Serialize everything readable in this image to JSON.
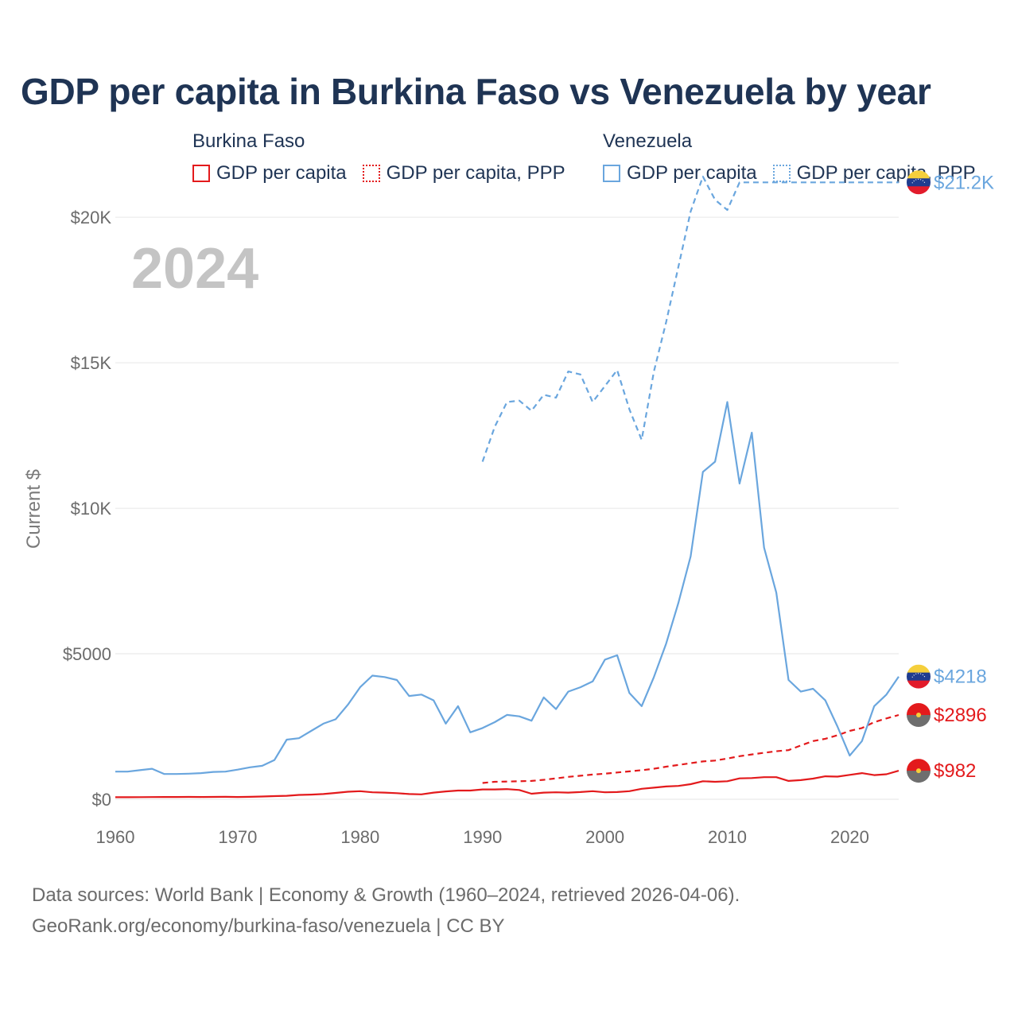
{
  "header": {
    "title": "GDP per capita in Burkina Faso vs Venezuela by year"
  },
  "legend": {
    "groups": [
      {
        "name": "Burkina Faso",
        "items": [
          "GDP per capita",
          "GDP per capita, PPP"
        ]
      },
      {
        "name": "Venezuela",
        "items": [
          "GDP per capita",
          "GDP per capita, PPP"
        ]
      }
    ]
  },
  "colors": {
    "burkina_faso": "#e31a1c",
    "venezuela": "#6aa6de",
    "title": "#1f3454",
    "grid": "#e6e6e6",
    "axis_text": "#6b6b6b",
    "year_watermark": "#c4c4c4"
  },
  "footer": {
    "line1": "Data sources: World Bank | Economy & Growth (1960–2024, retrieved 2026-04-06).",
    "line2": "GeoRank.org/economy/burkina-faso/venezuela | CC BY"
  },
  "chart_data": {
    "type": "line",
    "year_label": "2024",
    "ylabel": "Current $",
    "xlim": [
      1960,
      2024
    ],
    "ylim": [
      0,
      22000
    ],
    "x_ticks": [
      1960,
      1970,
      1980,
      1990,
      2000,
      2010,
      2020
    ],
    "y_ticks": [
      0,
      5000,
      10000,
      15000,
      20000
    ],
    "y_tick_labels": [
      "$0",
      "$5000",
      "$10K",
      "$15K",
      "$20K"
    ],
    "series": [
      {
        "name": "Burkina Faso — GDP per capita",
        "country": "Burkina Faso",
        "style": "solid",
        "color": "#e31a1c",
        "end_label": "$982",
        "points": [
          [
            1960,
            70
          ],
          [
            1961,
            72
          ],
          [
            1962,
            75
          ],
          [
            1963,
            77
          ],
          [
            1964,
            78
          ],
          [
            1965,
            80
          ],
          [
            1966,
            81
          ],
          [
            1967,
            80
          ],
          [
            1968,
            82
          ],
          [
            1969,
            84
          ],
          [
            1970,
            80
          ],
          [
            1971,
            84
          ],
          [
            1972,
            95
          ],
          [
            1973,
            110
          ],
          [
            1974,
            120
          ],
          [
            1975,
            150
          ],
          [
            1976,
            160
          ],
          [
            1977,
            180
          ],
          [
            1978,
            220
          ],
          [
            1979,
            260
          ],
          [
            1980,
            280
          ],
          [
            1981,
            240
          ],
          [
            1982,
            230
          ],
          [
            1983,
            210
          ],
          [
            1984,
            180
          ],
          [
            1985,
            170
          ],
          [
            1986,
            230
          ],
          [
            1987,
            270
          ],
          [
            1988,
            300
          ],
          [
            1989,
            300
          ],
          [
            1990,
            340
          ],
          [
            1991,
            340
          ],
          [
            1992,
            350
          ],
          [
            1993,
            320
          ],
          [
            1994,
            190
          ],
          [
            1995,
            230
          ],
          [
            1996,
            240
          ],
          [
            1997,
            230
          ],
          [
            1998,
            250
          ],
          [
            1999,
            280
          ],
          [
            2000,
            240
          ],
          [
            2001,
            250
          ],
          [
            2002,
            280
          ],
          [
            2003,
            360
          ],
          [
            2004,
            400
          ],
          [
            2005,
            440
          ],
          [
            2006,
            460
          ],
          [
            2007,
            520
          ],
          [
            2008,
            620
          ],
          [
            2009,
            600
          ],
          [
            2010,
            620
          ],
          [
            2011,
            720
          ],
          [
            2012,
            730
          ],
          [
            2013,
            760
          ],
          [
            2014,
            760
          ],
          [
            2015,
            630
          ],
          [
            2016,
            660
          ],
          [
            2017,
            710
          ],
          [
            2018,
            790
          ],
          [
            2019,
            780
          ],
          [
            2020,
            840
          ],
          [
            2021,
            900
          ],
          [
            2022,
            830
          ],
          [
            2023,
            860
          ],
          [
            2024,
            982
          ]
        ]
      },
      {
        "name": "Burkina Faso — GDP per capita, PPP",
        "country": "Burkina Faso",
        "style": "dashed",
        "color": "#e31a1c",
        "end_label": "$2896",
        "points": [
          [
            1990,
            560
          ],
          [
            1991,
            600
          ],
          [
            1992,
            610
          ],
          [
            1993,
            620
          ],
          [
            1994,
            630
          ],
          [
            1995,
            670
          ],
          [
            1996,
            720
          ],
          [
            1997,
            770
          ],
          [
            1998,
            810
          ],
          [
            1999,
            850
          ],
          [
            2000,
            880
          ],
          [
            2001,
            920
          ],
          [
            2002,
            960
          ],
          [
            2003,
            1000
          ],
          [
            2004,
            1050
          ],
          [
            2005,
            1120
          ],
          [
            2006,
            1180
          ],
          [
            2007,
            1240
          ],
          [
            2008,
            1300
          ],
          [
            2009,
            1330
          ],
          [
            2010,
            1400
          ],
          [
            2011,
            1480
          ],
          [
            2012,
            1540
          ],
          [
            2013,
            1600
          ],
          [
            2014,
            1650
          ],
          [
            2015,
            1690
          ],
          [
            2016,
            1850
          ],
          [
            2017,
            2000
          ],
          [
            2018,
            2080
          ],
          [
            2019,
            2200
          ],
          [
            2020,
            2350
          ],
          [
            2021,
            2450
          ],
          [
            2022,
            2650
          ],
          [
            2023,
            2780
          ],
          [
            2024,
            2896
          ]
        ]
      },
      {
        "name": "Venezuela — GDP per capita",
        "country": "Venezuela",
        "style": "solid",
        "color": "#6aa6de",
        "end_label": "$4218",
        "points": [
          [
            1960,
            950
          ],
          [
            1961,
            950
          ],
          [
            1962,
            1000
          ],
          [
            1963,
            1050
          ],
          [
            1964,
            870
          ],
          [
            1965,
            870
          ],
          [
            1966,
            880
          ],
          [
            1967,
            900
          ],
          [
            1968,
            940
          ],
          [
            1969,
            950
          ],
          [
            1970,
            1020
          ],
          [
            1971,
            1100
          ],
          [
            1972,
            1150
          ],
          [
            1973,
            1350
          ],
          [
            1974,
            2050
          ],
          [
            1975,
            2100
          ],
          [
            1976,
            2350
          ],
          [
            1977,
            2600
          ],
          [
            1978,
            2750
          ],
          [
            1979,
            3250
          ],
          [
            1980,
            3850
          ],
          [
            1981,
            4250
          ],
          [
            1982,
            4200
          ],
          [
            1983,
            4100
          ],
          [
            1984,
            3550
          ],
          [
            1985,
            3600
          ],
          [
            1986,
            3400
          ],
          [
            1987,
            2600
          ],
          [
            1988,
            3200
          ],
          [
            1989,
            2300
          ],
          [
            1990,
            2450
          ],
          [
            1991,
            2650
          ],
          [
            1992,
            2900
          ],
          [
            1993,
            2850
          ],
          [
            1994,
            2700
          ],
          [
            1995,
            3500
          ],
          [
            1996,
            3100
          ],
          [
            1997,
            3700
          ],
          [
            1998,
            3850
          ],
          [
            1999,
            4050
          ],
          [
            2000,
            4800
          ],
          [
            2001,
            4950
          ],
          [
            2002,
            3650
          ],
          [
            2003,
            3200
          ],
          [
            2004,
            4200
          ],
          [
            2005,
            5350
          ],
          [
            2006,
            6750
          ],
          [
            2007,
            8350
          ],
          [
            2008,
            11250
          ],
          [
            2009,
            11600
          ],
          [
            2010,
            13650
          ],
          [
            2011,
            10850
          ],
          [
            2012,
            12600
          ],
          [
            2013,
            8650
          ],
          [
            2014,
            7100
          ],
          [
            2015,
            4100
          ],
          [
            2016,
            3700
          ],
          [
            2017,
            3800
          ],
          [
            2018,
            3400
          ],
          [
            2019,
            2500
          ],
          [
            2020,
            1500
          ],
          [
            2021,
            2000
          ],
          [
            2022,
            3200
          ],
          [
            2023,
            3600
          ],
          [
            2024,
            4218
          ]
        ]
      },
      {
        "name": "Venezuela — GDP per capita, PPP",
        "country": "Venezuela",
        "style": "dashed",
        "color": "#6aa6de",
        "end_label": "$21.2K",
        "points": [
          [
            1990,
            11600
          ],
          [
            1991,
            12800
          ],
          [
            1992,
            13650
          ],
          [
            1993,
            13700
          ],
          [
            1994,
            13350
          ],
          [
            1995,
            13900
          ],
          [
            1996,
            13800
          ],
          [
            1997,
            14700
          ],
          [
            1998,
            14600
          ],
          [
            1999,
            13650
          ],
          [
            2000,
            14200
          ],
          [
            2001,
            14750
          ],
          [
            2002,
            13400
          ],
          [
            2003,
            12350
          ],
          [
            2004,
            14700
          ],
          [
            2005,
            16400
          ],
          [
            2006,
            18300
          ],
          [
            2007,
            20200
          ],
          [
            2008,
            21400
          ],
          [
            2009,
            20600
          ],
          [
            2010,
            20250
          ],
          [
            2011,
            21200
          ],
          [
            2012,
            21200
          ],
          [
            2013,
            21200
          ],
          [
            2014,
            21200
          ],
          [
            2015,
            21200
          ],
          [
            2016,
            21200
          ],
          [
            2017,
            21200
          ],
          [
            2018,
            21200
          ],
          [
            2019,
            21200
          ],
          [
            2020,
            21200
          ],
          [
            2021,
            21200
          ],
          [
            2022,
            21200
          ],
          [
            2023,
            21200
          ],
          [
            2024,
            21200
          ]
        ]
      }
    ]
  }
}
